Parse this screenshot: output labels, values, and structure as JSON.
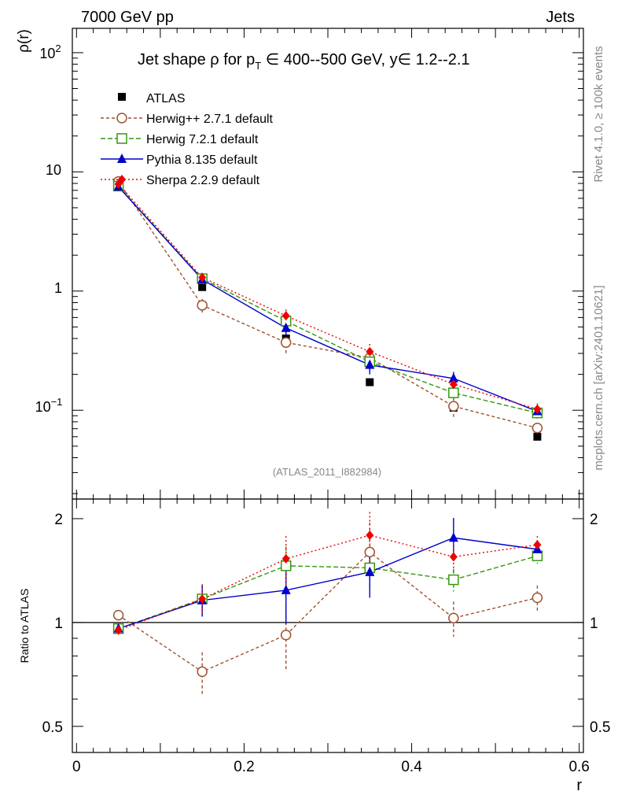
{
  "chart_data": {
    "type": "line",
    "header_left": "7000 GeV pp",
    "header_right": "Jets",
    "title_parts": [
      "Jet shape ",
      "ρ",
      " for p",
      "T",
      " ∈ 400--500 GeV, y∈ 1.2--2.1"
    ],
    "ylabel_main": "ρ(r)",
    "ylabel_ratio": "Ratio to ATLAS",
    "xlabel": "r",
    "side_text_1": "Rivet 4.1.0, ≥ 100k events",
    "side_text_2": "mcplots.cern.ch [arXiv:2401.10621]",
    "analysis_label": "(ATLAS_2011_I882984)",
    "xlim": [
      -0.005,
      0.605
    ],
    "ylim_main": [
      0.018,
      160
    ],
    "ylim_ratio": [
      0.42,
      2.28
    ],
    "x_ticks": [
      0,
      0.2,
      0.4,
      0.6
    ],
    "x_tick_labels": [
      "0",
      "0.2",
      "0.4",
      "0.6"
    ],
    "main_y_tick_labels": [
      "10",
      "2",
      "10",
      "1",
      "10",
      "−1"
    ],
    "ratio_y_ticks": [
      0.5,
      1,
      2
    ],
    "ratio_y_tick_labels": [
      "0.5",
      "1",
      "2"
    ],
    "x": [
      0.05,
      0.15,
      0.25,
      0.35,
      0.45,
      0.55
    ],
    "data": {
      "name": "ATLAS",
      "color": "#000000",
      "values": [
        7.8,
        1.08,
        0.4,
        0.172,
        0.105,
        0.06
      ]
    },
    "series": [
      {
        "name": "Herwig++ 2.7.1 default",
        "color": "#a0522d",
        "marker": "circle",
        "dash": "4,3",
        "values": [
          8.3,
          0.76,
          0.37,
          0.275,
          0.108,
          0.071
        ],
        "errors": [
          0.3,
          0.1,
          0.07,
          0.05,
          0.02,
          0.006
        ],
        "ratio": [
          1.05,
          0.72,
          0.92,
          1.6,
          1.03,
          1.18
        ],
        "ratio_errors": [
          0.02,
          0.1,
          0.2,
          0.35,
          0.12,
          0.1
        ]
      },
      {
        "name": "Herwig 7.2.1 default",
        "color": "#339911",
        "marker": "square",
        "dash": "6,3",
        "values": [
          7.6,
          1.27,
          0.56,
          0.255,
          0.14,
          0.095
        ],
        "errors": [
          0.25,
          0.12,
          0.06,
          0.04,
          0.015,
          0.01
        ],
        "ratio": [
          0.96,
          1.17,
          1.46,
          1.44,
          1.33,
          1.56
        ],
        "ratio_errors": [
          0.02,
          0.12,
          0.2,
          0.2,
          0.1,
          0.08
        ]
      },
      {
        "name": "Pythia 8.135 default",
        "color": "#0000cc",
        "marker": "triangle",
        "dash": "",
        "values": [
          7.5,
          1.25,
          0.49,
          0.24,
          0.185,
          0.098
        ],
        "errors": [
          0.25,
          0.12,
          0.06,
          0.04,
          0.025,
          0.01
        ],
        "ratio": [
          0.96,
          1.16,
          1.24,
          1.4,
          1.76,
          1.63
        ],
        "ratio_errors": [
          0.02,
          0.12,
          0.25,
          0.22,
          0.25,
          0.1
        ]
      },
      {
        "name": "Sherpa 2.2.9 default",
        "color": "#ee0000",
        "marker": "diamond",
        "dash": "2,3",
        "values": [
          7.9,
          1.3,
          0.62,
          0.31,
          0.165,
          0.102
        ],
        "errors": [
          0.3,
          0.12,
          0.08,
          0.05,
          0.02,
          0.012
        ],
        "ratio": [
          0.95,
          1.17,
          1.53,
          1.79,
          1.55,
          1.68
        ],
        "ratio_errors": [
          0.02,
          0.12,
          0.25,
          0.3,
          0.15,
          0.1
        ]
      }
    ]
  }
}
